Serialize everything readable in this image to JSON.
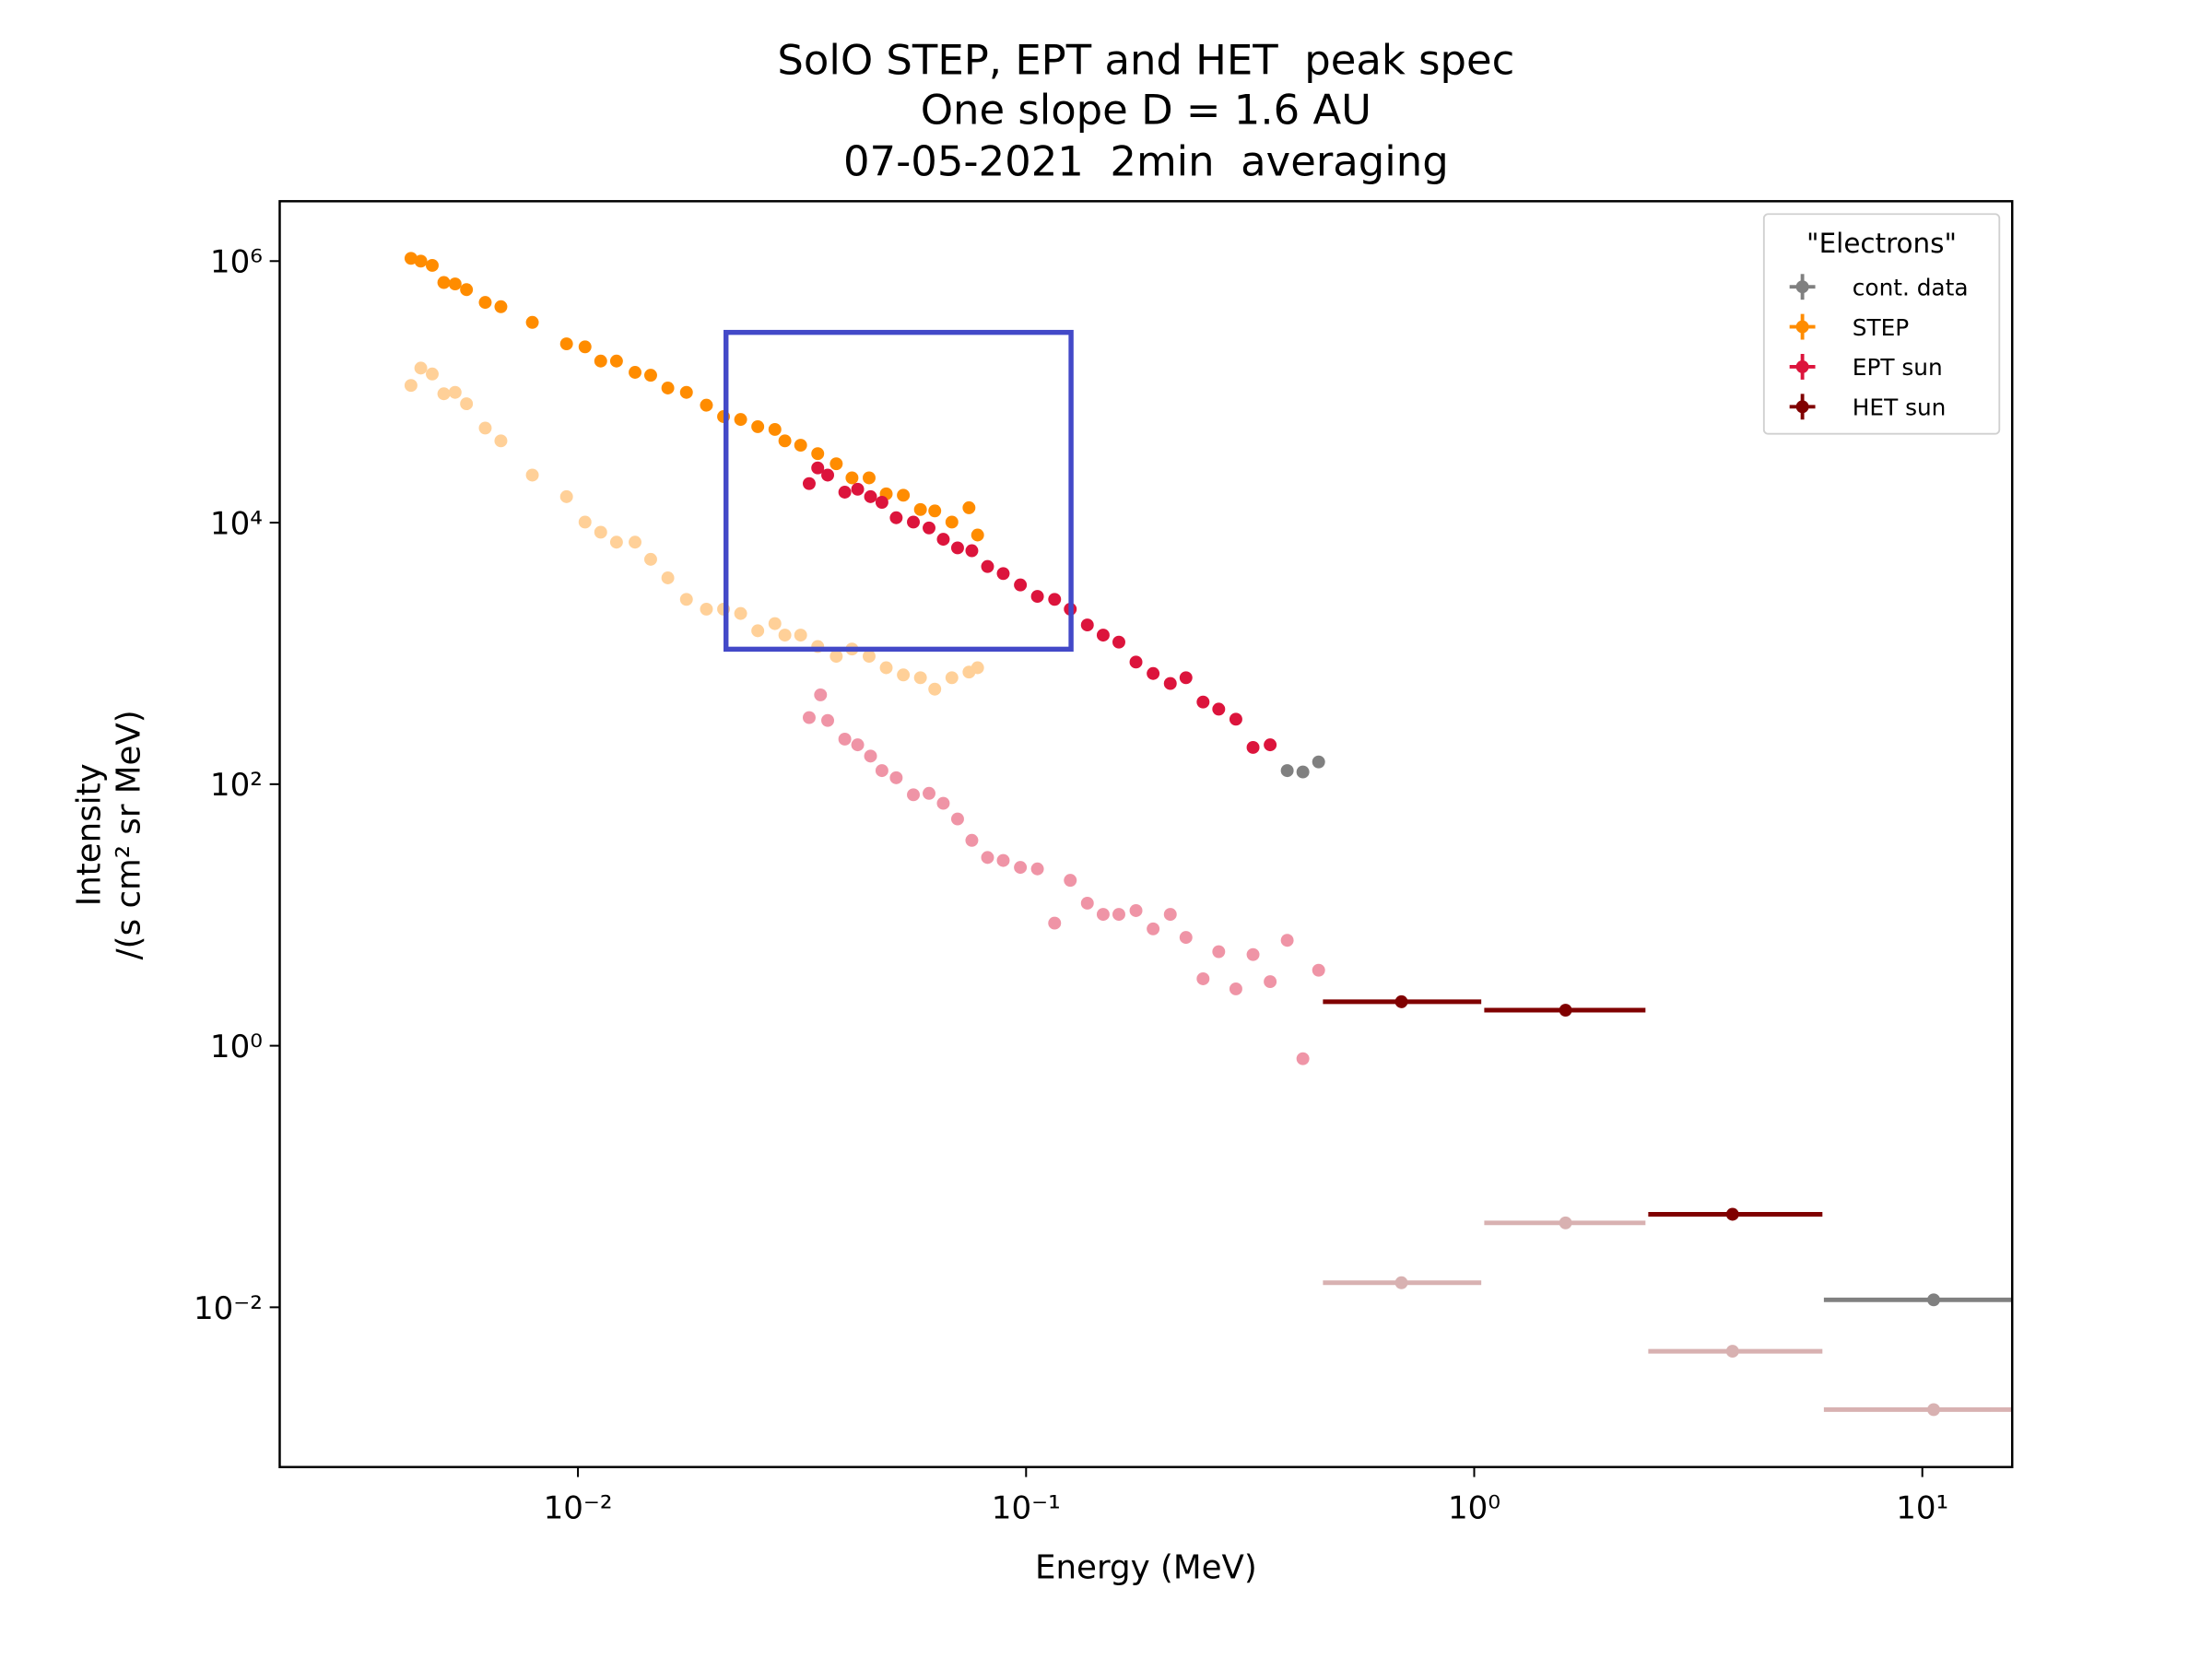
{
  "chart_data": {
    "type": "scatter",
    "title": [
      "SolO STEP, EPT and HET  peak spec",
      "One slope D = 1.6 AU",
      "07-05-2021  2min  averaging"
    ],
    "x_label": "Energy (MeV)",
    "y_label": [
      "Intensity",
      "/(s cm² sr MeV)"
    ],
    "x_log": true,
    "y_log": true,
    "xlim": [
      0.00216,
      15.87
    ],
    "ylim": [
      0.0006,
      2870000
    ],
    "xticks": [
      {
        "value": 0.01,
        "label": "10⁻²"
      },
      {
        "value": 0.1,
        "label": "10⁻¹"
      },
      {
        "value": 1,
        "label": "10⁰"
      },
      {
        "value": 10,
        "label": "10¹"
      }
    ],
    "yticks": [
      {
        "value": 0.01,
        "label": "10⁻²"
      },
      {
        "value": 1,
        "label": "10⁰"
      },
      {
        "value": 100,
        "label": "10²"
      },
      {
        "value": 10000,
        "label": "10⁴"
      },
      {
        "value": 1000000,
        "label": "10⁶"
      }
    ],
    "legend_title": "\"Electrons\"",
    "legend_position": "upper right",
    "highlight": {
      "xlim": [
        0.0214,
        0.126
      ],
      "ylim": [
        1077,
        285000
      ],
      "color": "#4349c8"
    },
    "series": [
      {
        "color": "#ff8c00",
        "alpha": 0.4,
        "x": [
          0.00424,
          0.00446,
          0.00473,
          0.00502,
          0.00532,
          0.00564,
          0.00621,
          0.00673,
          0.00791,
          0.00943,
          0.01037,
          0.01124,
          0.01219,
          0.01341,
          0.01453,
          0.01587,
          0.01746,
          0.01935,
          0.02113,
          0.02307,
          0.02519,
          0.02751,
          0.02896,
          0.0314,
          0.03428,
          0.03771,
          0.04088,
          0.04464,
          0.04874,
          0.05322,
          0.05811,
          0.06255,
          0.0683,
          0.07458,
          0.07795
        ],
        "values": [
          112000,
          152000,
          137000,
          96700,
          99100,
          81100,
          52900,
          42200,
          23100,
          15800,
          10100,
          8450,
          7090,
          7090,
          5240,
          3780,
          2590,
          2180,
          2180,
          2020,
          1490,
          1690,
          1380,
          1380,
          1130,
          950,
          1080,
          950,
          777,
          685,
          652,
          533,
          652,
          720,
          777
        ]
      },
      {
        "color": "#dc143c",
        "alpha": 0.45,
        "x": [
          0.03281,
          0.03478,
          0.03608,
          0.0394,
          0.04209,
          0.04497,
          0.04768,
          0.05131,
          0.05604,
          0.06074,
          0.06535,
          0.07033,
          0.07568,
          0.08204,
          0.08892,
          0.09712,
          0.106,
          0.1158,
          0.1255,
          0.137,
          0.1486,
          0.1611,
          0.1759,
          0.1921,
          0.2098,
          0.2274,
          0.2483,
          0.2691,
          0.2939,
          0.321,
          0.3505,
          0.3826,
          0.4147,
          0.4496
        ],
        "values": [
          323,
          482,
          307,
          221,
          200,
          164,
          127,
          112,
          83.0,
          85.1,
          71.4,
          54.2,
          37.2,
          27.5,
          26.1,
          23.1,
          22.5,
          8.66,
          18.4,
          12.3,
          10.1,
          10.1,
          10.8,
          7.83,
          10.1,
          6.73,
          3.25,
          5.24,
          2.72,
          4.98,
          3.09,
          6.4,
          0.796,
          3.78
        ]
      },
      {
        "color": "#800000",
        "alpha": 0.3,
        "x": [
          0.688,
          1.599,
          3.771,
          10.6
        ],
        "values": [
          0.0154,
          0.0442,
          0.00461,
          0.00165
        ],
        "xmin": [
          0.4597,
          1.053,
          2.446,
          6.03
        ],
        "xmax": [
          1.037,
          2.411,
          5.985,
          18.6
        ]
      },
      {
        "name": "cont. data",
        "color": "#808080",
        "alpha": 1,
        "x": [
          0.3826,
          0.4147,
          0.4496,
          10.6
        ],
        "values": [
          127,
          124,
          148,
          0.0114
        ],
        "xmin": [
          null,
          null,
          null,
          6.03
        ],
        "xmax": [
          null,
          null,
          null,
          18.6
        ]
      },
      {
        "name": "STEP",
        "color": "#ff8c00",
        "alpha": 1,
        "x": [
          0.00424,
          0.00446,
          0.00473,
          0.00502,
          0.00532,
          0.00564,
          0.00621,
          0.00673,
          0.00791,
          0.00943,
          0.01037,
          0.01124,
          0.01219,
          0.01341,
          0.01453,
          0.01587,
          0.01746,
          0.01935,
          0.02113,
          0.02307,
          0.02519,
          0.02751,
          0.02896,
          0.0314,
          0.03428,
          0.03771,
          0.04088,
          0.04464,
          0.04874,
          0.05322,
          0.05811,
          0.06255,
          0.0683,
          0.07458,
          0.07795
        ],
        "values": [
          1050000,
          1000000,
          927000,
          686000,
          669000,
          605000,
          483000,
          448000,
          340000,
          233000,
          221000,
          172000,
          172000,
          141000,
          134000,
          107000,
          99100,
          79100,
          64700,
          61500,
          54200,
          51600,
          42200,
          39100,
          33700,
          28200,
          22000,
          22000,
          16600,
          16200,
          12600,
          12300,
          10100,
          13000,
          8040
        ]
      },
      {
        "name": "EPT sun",
        "color": "#dc143c",
        "alpha": 1,
        "x": [
          0.03281,
          0.03428,
          0.03608,
          0.0394,
          0.04209,
          0.04497,
          0.04768,
          0.05131,
          0.05604,
          0.06074,
          0.06535,
          0.07033,
          0.07568,
          0.08204,
          0.08892,
          0.09712,
          0.106,
          0.1158,
          0.1255,
          0.137,
          0.1486,
          0.1611,
          0.1759,
          0.1921,
          0.2098,
          0.2274,
          0.2483,
          0.2691,
          0.2939,
          0.321,
          0.3505
        ],
        "values": [
          19900,
          26200,
          23100,
          17100,
          18000,
          15800,
          14300,
          10900,
          10100,
          9110,
          7460,
          6410,
          6100,
          4620,
          4080,
          3340,
          2730,
          2590,
          2180,
          1650,
          1380,
          1220,
          859,
          702,
          589,
          652,
          425,
          375,
          314,
          191,
          200
        ]
      },
      {
        "name": "HET sun",
        "color": "#800000",
        "alpha": 1,
        "x": [
          0.688,
          1.599,
          3.771
        ],
        "values": [
          2.17,
          1.87,
          0.0514
        ],
        "xmin": [
          0.4597,
          1.053,
          2.446
        ],
        "xmax": [
          1.037,
          2.411,
          5.985
        ]
      }
    ]
  }
}
